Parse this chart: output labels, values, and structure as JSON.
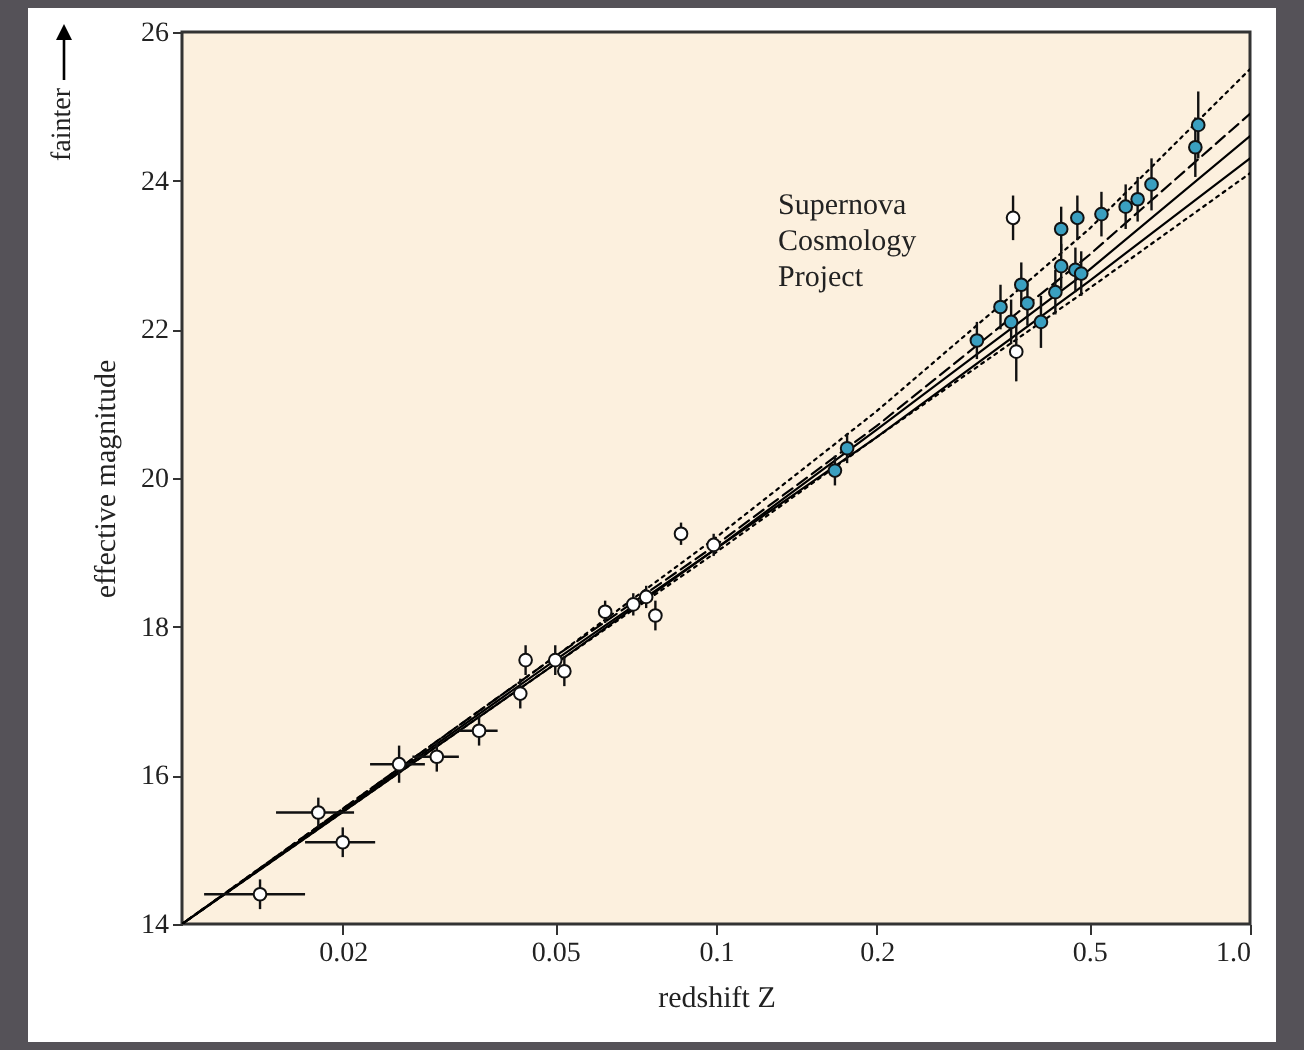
{
  "chart_data": {
    "type": "scatter",
    "xlabel": "redshift Z",
    "ylabel": "effective magnitude",
    "log": "x",
    "xlim": [
      0.01,
      1.0
    ],
    "ylim": [
      14,
      26
    ],
    "xticks": [
      0.02,
      0.05,
      0.1,
      0.2,
      0.5,
      {
        "value": 1.0,
        "label": "1.0"
      }
    ],
    "yticks": [
      14,
      16,
      18,
      20,
      22,
      24,
      26
    ],
    "grid": false,
    "marker": "circle",
    "annotations": [
      "fainter",
      "Supernova Cosmology Project"
    ],
    "series": [
      {
        "type": "line",
        "marker": "none",
        "color": "#000000",
        "line_style": "dotted",
        "x": [
          0.01,
          0.05,
          0.1,
          0.2,
          0.5,
          1.0
        ],
        "values": [
          14.0,
          17.6,
          19.2,
          20.9,
          23.35,
          25.5
        ]
      },
      {
        "type": "line",
        "marker": "none",
        "color": "#000000",
        "line_style": "dashed",
        "x": [
          0.01,
          0.05,
          0.1,
          0.2,
          0.5,
          1.0
        ],
        "values": [
          14.0,
          17.6,
          19.1,
          20.7,
          23.0,
          24.9
        ]
      },
      {
        "type": "line",
        "marker": "none",
        "color": "#000000",
        "line_style": "solid",
        "x": [
          0.01,
          0.05,
          0.1,
          0.2,
          0.5,
          1.0
        ],
        "values": [
          14.0,
          17.55,
          19.05,
          20.65,
          22.8,
          24.6
        ]
      },
      {
        "type": "line",
        "marker": "none",
        "color": "#000000",
        "line_style": "solid",
        "x": [
          0.01,
          0.05,
          0.1,
          0.2,
          0.5,
          1.0
        ],
        "values": [
          14.0,
          17.5,
          19.05,
          20.55,
          22.65,
          24.3
        ]
      },
      {
        "type": "line",
        "marker": "none",
        "color": "#000000",
        "line_style": "dotted",
        "x": [
          0.01,
          0.05,
          0.1,
          0.2,
          0.5,
          1.0
        ],
        "values": [
          14.0,
          17.5,
          19.0,
          20.55,
          22.55,
          24.1
        ]
      },
      {
        "color": "#ffffff",
        "x": [
          0.014,
          0.018,
          0.02,
          0.0255,
          0.03,
          0.036,
          0.043,
          0.044,
          0.05,
          0.052,
          0.062,
          0.07,
          0.074,
          0.077,
          0.086,
          0.099,
          0.36,
          0.365
        ],
        "values": [
          14.4,
          15.5,
          15.1,
          16.15,
          16.25,
          16.6,
          17.1,
          17.55,
          17.55,
          17.4,
          18.2,
          18.3,
          18.4,
          18.15,
          19.25,
          19.1,
          23.5,
          21.7
        ],
        "errors": [
          0.2,
          0.2,
          0.2,
          0.25,
          0.2,
          0.2,
          0.2,
          0.2,
          0.2,
          0.2,
          0.15,
          0.15,
          0.15,
          0.2,
          0.15,
          0.15,
          0.3,
          0.4
        ],
        "xerrors": [
          0.003,
          0.003,
          0.003,
          0.003,
          0.003,
          0.003,
          null,
          null,
          null,
          null,
          null,
          null,
          null,
          null,
          null,
          null,
          null,
          null
        ]
      },
      {
        "color": "#3a9fc0",
        "x": [
          0.167,
          0.176,
          0.308,
          0.341,
          0.357,
          0.373,
          0.383,
          0.406,
          0.432,
          0.443,
          0.471,
          0.483,
          0.443,
          0.475,
          0.527,
          0.585,
          0.616,
          0.654,
          0.79,
          0.8
        ],
        "values": [
          20.1,
          20.4,
          21.85,
          22.3,
          22.1,
          22.6,
          22.35,
          22.1,
          22.5,
          22.85,
          22.8,
          22.75,
          23.35,
          23.5,
          23.55,
          23.65,
          23.75,
          23.95,
          24.45,
          24.75
        ],
        "errors": [
          0.2,
          0.2,
          0.25,
          0.3,
          0.3,
          0.3,
          0.3,
          0.35,
          0.3,
          0.3,
          0.3,
          0.3,
          0.3,
          0.3,
          0.3,
          0.3,
          0.3,
          0.35,
          0.4,
          0.45
        ]
      }
    ]
  }
}
